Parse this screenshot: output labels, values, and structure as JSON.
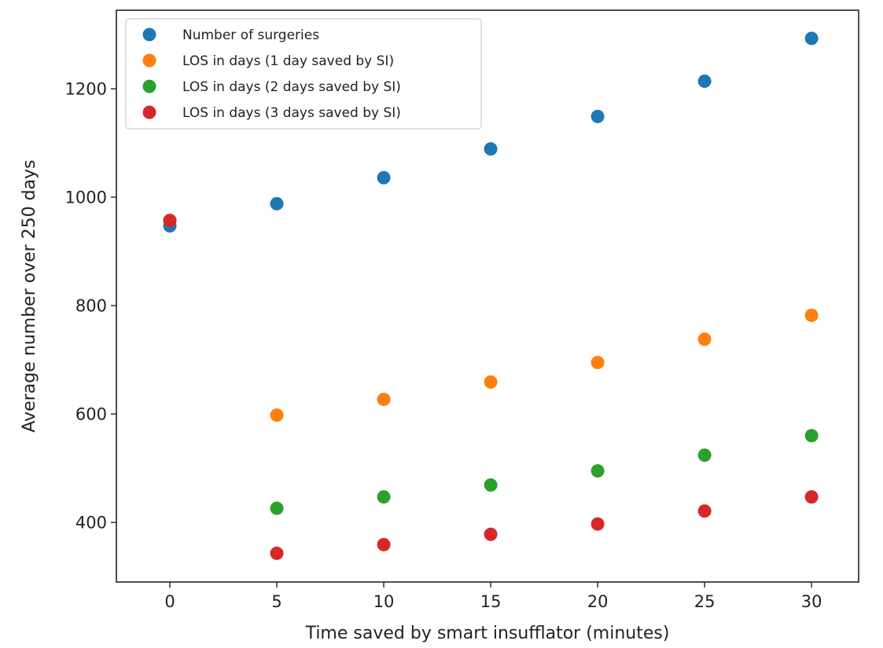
{
  "chart_data": {
    "type": "scatter",
    "title": "",
    "xlabel": "Time saved by smart insufflator (minutes)",
    "ylabel": "Average number over 250 days",
    "xlim": [
      -2.5,
      32.2
    ],
    "ylim": [
      290,
      1345
    ],
    "xticks": [
      0,
      5,
      10,
      15,
      20,
      25,
      30
    ],
    "yticks": [
      400,
      600,
      800,
      1000,
      1200
    ],
    "grid": false,
    "legend_position": "top-left",
    "series": [
      {
        "name": "Number of surgeries",
        "color": "#1f77b4",
        "x": [
          0,
          5,
          10,
          15,
          20,
          25,
          30
        ],
        "y": [
          947,
          988,
          1036,
          1089,
          1149,
          1214,
          1293
        ]
      },
      {
        "name": "LOS in days (1 day saved by SI)",
        "color": "#ff7f0e",
        "x": [
          0,
          5,
          10,
          15,
          20,
          25,
          30
        ],
        "y": [
          957,
          598,
          627,
          659,
          695,
          738,
          782
        ]
      },
      {
        "name": "LOS in days (2 days saved by SI)",
        "color": "#2ca02c",
        "x": [
          0,
          5,
          10,
          15,
          20,
          25,
          30
        ],
        "y": [
          957,
          426,
          447,
          469,
          495,
          524,
          560
        ]
      },
      {
        "name": "LOS in days (3 days saved by SI)",
        "color": "#d62728",
        "x": [
          0,
          5,
          10,
          15,
          20,
          25,
          30
        ],
        "y": [
          957,
          343,
          359,
          378,
          397,
          421,
          447
        ]
      }
    ]
  }
}
